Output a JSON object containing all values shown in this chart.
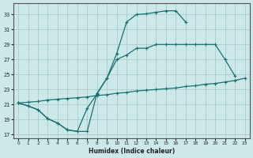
{
  "xlabel": "Humidex (Indice chaleur)",
  "bg_color": "#cce8e8",
  "line_color": "#1a7070",
  "grid_color": "#aacccc",
  "xlim": [
    -0.5,
    23.5
  ],
  "ylim": [
    16.5,
    34.5
  ],
  "xticks": [
    0,
    1,
    2,
    3,
    4,
    5,
    6,
    7,
    8,
    9,
    10,
    11,
    12,
    13,
    14,
    15,
    16,
    17,
    18,
    19,
    20,
    21,
    22,
    23
  ],
  "yticks": [
    17,
    19,
    21,
    23,
    25,
    27,
    29,
    31,
    33
  ],
  "line1_x": [
    0,
    1,
    2,
    3,
    4,
    5,
    6,
    7,
    8,
    9,
    10,
    11,
    12,
    13,
    14,
    15,
    16,
    17
  ],
  "line1_y": [
    21.2,
    20.8,
    20.3,
    19.1,
    18.5,
    17.6,
    17.4,
    17.4,
    22.5,
    24.5,
    27.8,
    32.0,
    33.0,
    33.1,
    33.3,
    33.5,
    33.5,
    32.0
  ],
  "line2_x": [
    0,
    1,
    2,
    3,
    4,
    5,
    6,
    7,
    8,
    9,
    10,
    11,
    12,
    13,
    14,
    15,
    16,
    17,
    18,
    19,
    20,
    21,
    22
  ],
  "line2_y": [
    21.2,
    20.8,
    20.3,
    19.1,
    18.5,
    17.6,
    17.4,
    20.5,
    22.4,
    24.5,
    27.0,
    27.6,
    28.5,
    28.5,
    29.0,
    29.0,
    29.0,
    29.0,
    29.0,
    29.0,
    29.0,
    27.0,
    24.8
  ],
  "line3_x": [
    0,
    23
  ],
  "line3_y": [
    21.2,
    24.5
  ],
  "line3_full_x": [
    0,
    1,
    2,
    3,
    4,
    5,
    6,
    7,
    8,
    9,
    10,
    11,
    12,
    13,
    14,
    15,
    16,
    17,
    18,
    19,
    20,
    21,
    22,
    23
  ],
  "line3_full_y": [
    21.2,
    21.3,
    21.4,
    21.6,
    21.7,
    21.8,
    21.9,
    22.0,
    22.2,
    22.3,
    22.5,
    22.6,
    22.8,
    22.9,
    23.0,
    23.1,
    23.2,
    23.4,
    23.5,
    23.7,
    23.8,
    24.0,
    24.2,
    24.5
  ]
}
